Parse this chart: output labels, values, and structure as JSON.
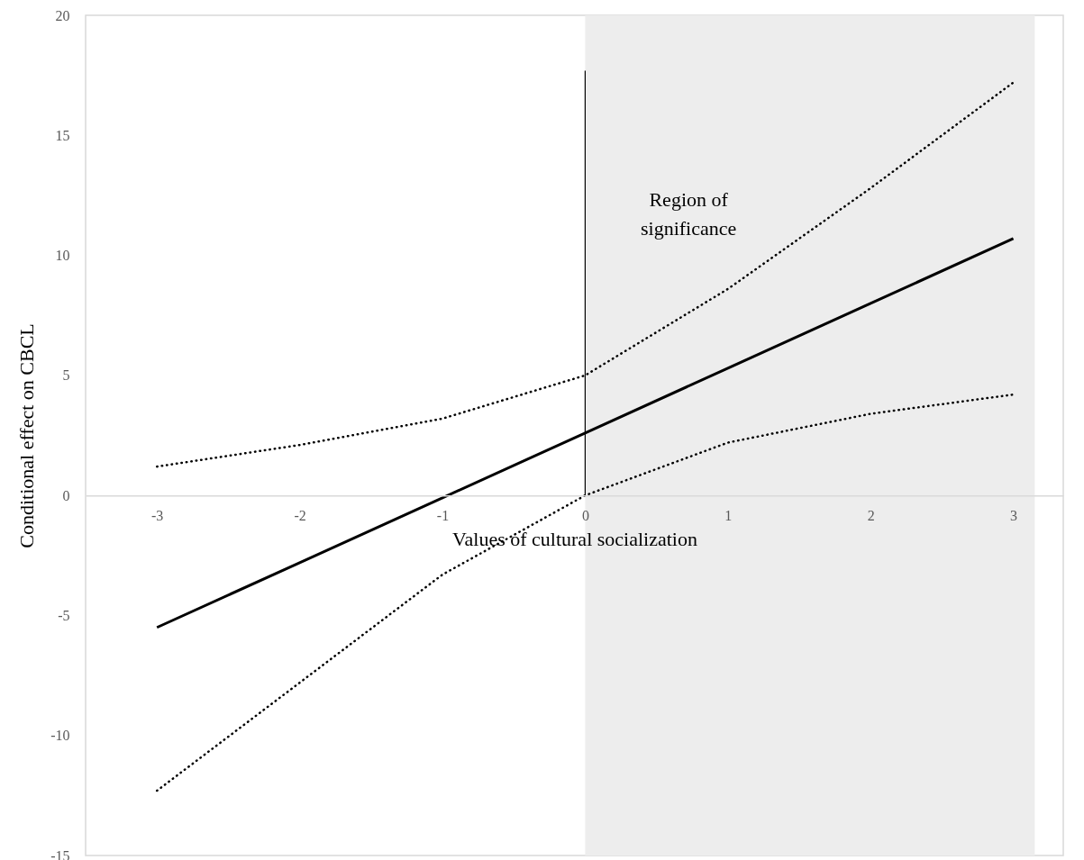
{
  "chart_data": {
    "type": "line",
    "xlabel": "Values of cultural socialization",
    "ylabel": "Conditional effect on CBCL",
    "x": [
      -3,
      -2,
      -1,
      0,
      1,
      2,
      3
    ],
    "xlim": [
      -3.5,
      3.35
    ],
    "xticks": [
      -3,
      -2,
      -1,
      0,
      1,
      2,
      3
    ],
    "ylim": [
      -15,
      20
    ],
    "yticks": [
      -15,
      -10,
      -5,
      0,
      5,
      10,
      15,
      20
    ],
    "series": [
      {
        "color": "#000000",
        "line_style": "solid",
        "values": [
          -5.5,
          -2.8,
          -0.1,
          2.6,
          5.3,
          8.0,
          10.7
        ]
      },
      {
        "color": "#000000",
        "line_style": "dotted",
        "values": [
          1.2,
          2.1,
          3.2,
          5.0,
          8.6,
          12.8,
          17.2
        ]
      },
      {
        "color": "#000000",
        "line_style": "dotted",
        "values": [
          -12.3,
          -7.8,
          -3.3,
          0,
          2.2,
          3.4,
          4.2
        ]
      }
    ],
    "bands": [
      {
        "axis": "x",
        "from": 0,
        "to": 3.15,
        "label": "Region of significance",
        "color": "#ededed"
      }
    ],
    "ref_lines": [
      {
        "axis": "x",
        "value": 0,
        "color": "#000000"
      }
    ],
    "grid": false
  }
}
